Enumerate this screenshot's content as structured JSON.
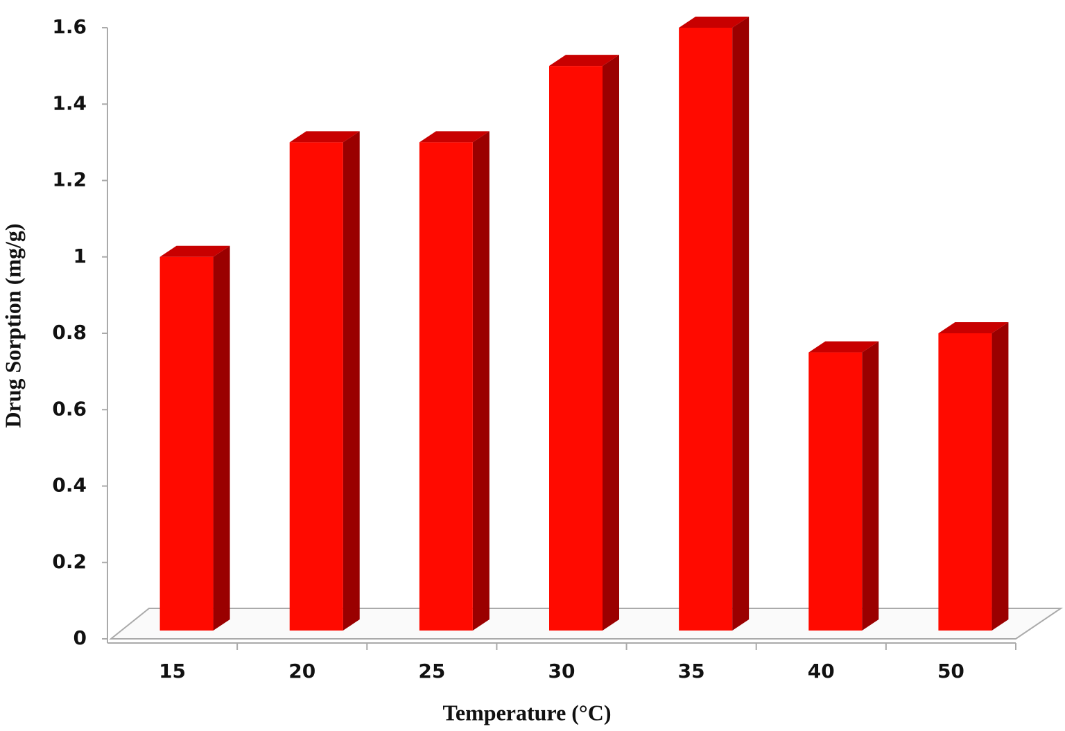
{
  "chart_data": {
    "type": "bar3d",
    "x_label": "Temperature (°C)",
    "y_label": "Drug  Sorption  (mg/g)",
    "categories": [
      "15",
      "20",
      "25",
      "30",
      "35",
      "40",
      "50"
    ],
    "values": [
      1.0,
      1.3,
      1.3,
      1.5,
      1.6,
      0.75,
      0.8
    ],
    "color": "#ff0a00",
    "ylim": [
      0,
      1.6
    ],
    "yticks": [
      0,
      0.2,
      0.4,
      0.6,
      0.8,
      1,
      1.2,
      1.4,
      1.6
    ]
  }
}
